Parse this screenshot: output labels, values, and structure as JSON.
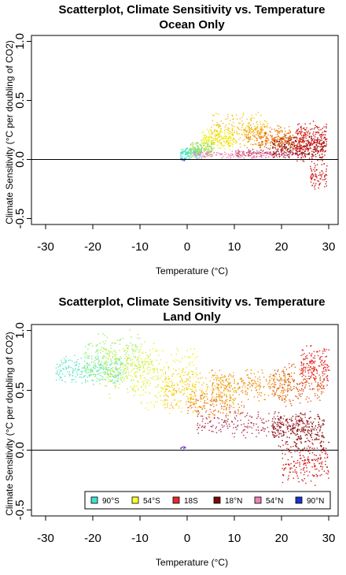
{
  "chart_data": [
    {
      "type": "scatter",
      "title": "Scatterplot, Climate Sensitivity vs. Temperature",
      "subtitle": "Ocean Only",
      "xlabel": "Temperature (°C)",
      "ylabel": "Climate Sensitivity (°C per doubling of CO2)",
      "xlim": [
        -33,
        32
      ],
      "ylim": [
        -0.55,
        1.05
      ],
      "xticks": [
        -30,
        -20,
        -10,
        0,
        10,
        20,
        30
      ],
      "yticks": [
        -0.5,
        0.0,
        0.5,
        1.0
      ],
      "tick_labels_x": [
        "-30",
        "-20",
        "-10",
        "0",
        "10",
        "20",
        "30"
      ],
      "tick_labels_y": [
        "-0.5",
        "0.0",
        "0.5",
        "1.0"
      ],
      "reference_line_y": 0,
      "grid": false,
      "clusters": [
        {
          "color": "#4169e1",
          "n": 20,
          "x": [
            -1.6,
            -0.6
          ],
          "y": [
            -0.01,
            0.02
          ]
        },
        {
          "color": "#40e0c0",
          "n": 120,
          "x": [
            -1.5,
            3.0
          ],
          "y": [
            0.0,
            0.12
          ]
        },
        {
          "color": "#9de060",
          "n": 150,
          "x": [
            0.5,
            5.5
          ],
          "y": [
            0.02,
            0.17
          ]
        },
        {
          "color": "#f0f020",
          "n": 180,
          "x": [
            3.0,
            10.0
          ],
          "y": [
            0.08,
            0.28
          ]
        },
        {
          "color": "#f5c518",
          "n": 220,
          "x": [
            5.0,
            17.0
          ],
          "y": [
            0.1,
            0.42
          ]
        },
        {
          "color": "#f08a10",
          "n": 180,
          "x": [
            12.0,
            22.0
          ],
          "y": [
            0.08,
            0.3
          ]
        },
        {
          "color": "#e0601a",
          "n": 150,
          "x": [
            15.0,
            25.0
          ],
          "y": [
            0.06,
            0.25
          ]
        },
        {
          "color": "#ee82b4",
          "n": 150,
          "x": [
            1.0,
            19.0
          ],
          "y": [
            0.01,
            0.08
          ]
        },
        {
          "color": "#c0486e",
          "n": 140,
          "x": [
            10.0,
            25.0
          ],
          "y": [
            0.02,
            0.1
          ]
        },
        {
          "color": "#8b1010",
          "n": 200,
          "x": [
            18.0,
            29.0
          ],
          "y": [
            0.0,
            0.22
          ]
        },
        {
          "color": "#cc1010",
          "n": 260,
          "x": [
            23.0,
            29.5
          ],
          "y": [
            -0.05,
            0.35
          ]
        },
        {
          "color": "#d01818",
          "n": 80,
          "x": [
            26.0,
            29.5
          ],
          "y": [
            -0.27,
            0.0
          ]
        }
      ]
    },
    {
      "type": "scatter",
      "title": "Scatterplot, Climate Sensitivity vs. Temperature",
      "subtitle": "Land Only",
      "xlabel": "Temperature (°C)",
      "ylabel": "Climate Sensitivity (°C per doubling of CO2)",
      "xlim": [
        -33,
        32
      ],
      "ylim": [
        -0.55,
        1.05
      ],
      "xticks": [
        -30,
        -20,
        -10,
        0,
        10,
        20,
        30
      ],
      "yticks": [
        -0.5,
        0.0,
        0.5,
        1.0
      ],
      "tick_labels_x": [
        "-30",
        "-20",
        "-10",
        "0",
        "10",
        "20",
        "30"
      ],
      "tick_labels_y": [
        "-0.5",
        "0.0",
        "0.5",
        "1.0"
      ],
      "reference_line_y": 0,
      "grid": false,
      "legend_position": "bottom",
      "legend": [
        {
          "label": "90°S",
          "color": "#40e0d0"
        },
        {
          "label": "54°S",
          "color": "#ffff33"
        },
        {
          "label": "18S",
          "color": "#e8282a"
        },
        {
          "label": "18°N",
          "color": "#7a0a0a"
        },
        {
          "label": "54°N",
          "color": "#ee82b4"
        },
        {
          "label": "90°N",
          "color": "#1a33cc"
        }
      ],
      "clusters": [
        {
          "color": "#60e8c8",
          "n": 260,
          "x": [
            -28.0,
            -14.0
          ],
          "y": [
            0.55,
            0.8
          ]
        },
        {
          "color": "#9af070",
          "n": 220,
          "x": [
            -22.0,
            -10.0
          ],
          "y": [
            0.5,
            1.02
          ]
        },
        {
          "color": "#c8f040",
          "n": 200,
          "x": [
            -18.0,
            -6.0
          ],
          "y": [
            0.4,
            0.95
          ]
        },
        {
          "color": "#f0f020",
          "n": 220,
          "x": [
            -12.0,
            2.0
          ],
          "y": [
            0.3,
            0.9
          ]
        },
        {
          "color": "#f5c518",
          "n": 240,
          "x": [
            -5.0,
            10.0
          ],
          "y": [
            0.3,
            0.7
          ]
        },
        {
          "color": "#f09010",
          "n": 260,
          "x": [
            5.0,
            22.0
          ],
          "y": [
            0.4,
            0.7
          ]
        },
        {
          "color": "#e87818",
          "n": 140,
          "x": [
            0.0,
            12.0
          ],
          "y": [
            0.25,
            0.5
          ]
        },
        {
          "color": "#e05a1a",
          "n": 200,
          "x": [
            18.0,
            29.0
          ],
          "y": [
            0.35,
            0.75
          ]
        },
        {
          "color": "#b03050",
          "n": 220,
          "x": [
            2.0,
            26.0
          ],
          "y": [
            0.1,
            0.35
          ]
        },
        {
          "color": "#8b1010",
          "n": 260,
          "x": [
            18.0,
            29.0
          ],
          "y": [
            0.0,
            0.35
          ]
        },
        {
          "color": "#d01818",
          "n": 200,
          "x": [
            20.0,
            30.0
          ],
          "y": [
            -0.3,
            0.1
          ]
        },
        {
          "color": "#e82020",
          "n": 160,
          "x": [
            24.0,
            30.0
          ],
          "y": [
            0.5,
            0.9
          ]
        },
        {
          "color": "#7a40c0",
          "n": 15,
          "x": [
            -1.5,
            -0.5
          ],
          "y": [
            0.0,
            0.05
          ]
        }
      ]
    }
  ]
}
